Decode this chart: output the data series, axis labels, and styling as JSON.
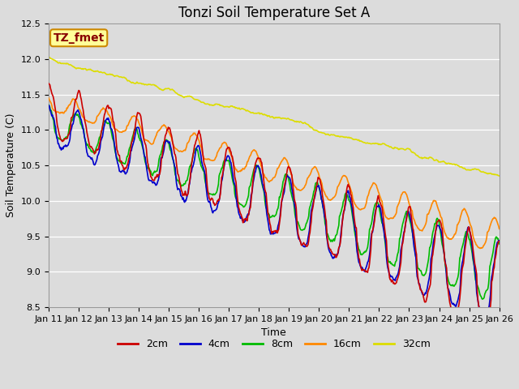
{
  "title": "Tonzi Soil Temperature Set A",
  "xlabel": "Time",
  "ylabel": "Soil Temperature (C)",
  "ylim": [
    8.5,
    12.5
  ],
  "annotation": "TZ_fmet",
  "series_labels": [
    "2cm",
    "4cm",
    "8cm",
    "16cm",
    "32cm"
  ],
  "series_colors": [
    "#cc0000",
    "#0000cc",
    "#00bb00",
    "#ff8800",
    "#dddd00"
  ],
  "line_widths": [
    1.2,
    1.2,
    1.2,
    1.2,
    1.2
  ],
  "background_color": "#dcdcdc",
  "plot_bg_color": "#dcdcdc",
  "tick_labels": [
    "Jan 11",
    "Jan 12",
    "Jan 13",
    "Jan 14",
    "Jan 15",
    "Jan 16",
    "Jan 17",
    "Jan 18",
    "Jan 19",
    "Jan 20",
    "Jan 21",
    "Jan 22",
    "Jan 23",
    "Jan 24",
    "Jan 25",
    "Jan 26"
  ],
  "legend_colors": [
    "#cc0000",
    "#0000cc",
    "#00bb00",
    "#ff8800",
    "#dddd00"
  ],
  "legend_labels": [
    "2cm",
    "4cm",
    "8cm",
    "16cm",
    "32cm"
  ],
  "annotation_bg": "#ffff99",
  "annotation_edge": "#cc8800",
  "annotation_text_color": "#880000",
  "title_fontsize": 12,
  "axis_label_fontsize": 9,
  "tick_fontsize": 8,
  "legend_fontsize": 9,
  "n_days": 15,
  "n_pts_per_day": 48,
  "seed": 12345
}
